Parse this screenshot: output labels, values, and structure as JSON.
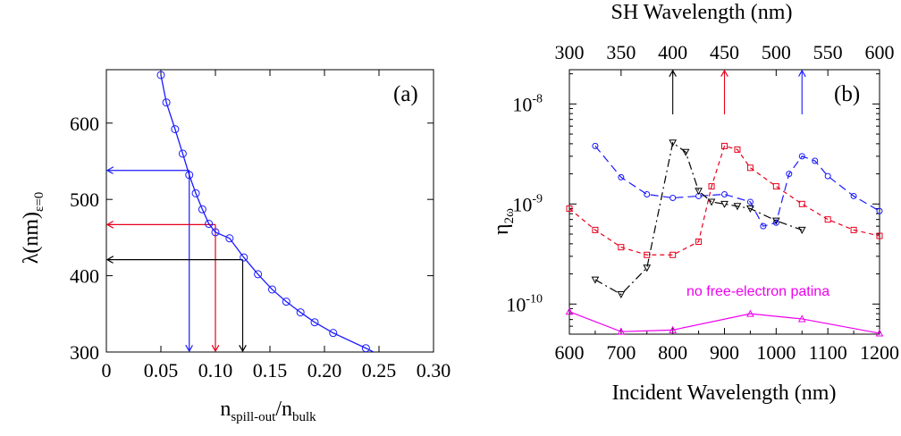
{
  "chart_data": [
    {
      "panel": "(a)",
      "type": "line",
      "xlabel_main": "n",
      "xlabel_sub1": "spill-out",
      "xlabel_mid": "/n",
      "xlabel_sub2": "bulk",
      "ylabel_main": "λ(nm)",
      "ylabel_sub": "ε=0",
      "xlim": [
        0,
        0.3
      ],
      "ylim": [
        300,
        670
      ],
      "xticks": [
        0,
        0.05,
        0.1,
        0.15,
        0.2,
        0.25,
        0.3
      ],
      "xtick_labels": [
        "0",
        "0.05",
        "0.10",
        "0.15",
        "0.20",
        "0.25",
        "0.30"
      ],
      "yticks": [
        300,
        400,
        500,
        600
      ],
      "ytick_labels": [
        "300",
        "400",
        "500",
        "600"
      ],
      "grid": false,
      "series": [
        {
          "color": "#1a1aff",
          "marker": "circle",
          "x": [
            0.05,
            0.055,
            0.063,
            0.07,
            0.076,
            0.082,
            0.088,
            0.094,
            0.1,
            0.113,
            0.126,
            0.139,
            0.152,
            0.165,
            0.178,
            0.191,
            0.208,
            0.238,
            0.245
          ],
          "y": [
            663,
            627,
            592,
            560,
            532,
            508,
            487,
            468,
            457,
            449,
            424,
            402,
            382,
            366,
            352,
            339,
            325,
            305,
            300
          ]
        }
      ],
      "arrows": [
        {
          "color": "#1a1aff",
          "x": 0.076,
          "y": 538
        },
        {
          "color": "#e8001c",
          "x": 0.1,
          "y": 467
        },
        {
          "color": "#000000",
          "x": 0.125,
          "y": 421
        }
      ]
    },
    {
      "panel": "(b)",
      "type": "line",
      "xlabel": "Incident Wavelength (nm)",
      "x2label": "SH Wavelength (nm)",
      "ylabel_main": "η",
      "ylabel_sub": "2ω",
      "yscale": "log",
      "xlim": [
        600,
        1200
      ],
      "ylim": [
        5e-11,
        2.2e-08
      ],
      "xticks": [
        600,
        700,
        800,
        900,
        1000,
        1100,
        1200
      ],
      "xtick_labels": [
        "600",
        "700",
        "800",
        "900",
        "1000",
        "1100",
        "1200"
      ],
      "x2ticks": [
        300,
        350,
        400,
        450,
        500,
        550,
        600
      ],
      "x2tick_labels": [
        "300",
        "350",
        "400",
        "450",
        "500",
        "550",
        "600"
      ],
      "ytick_mantissa": "10",
      "ytick_exponents": [
        "-8",
        "-9",
        "-10"
      ],
      "annotation": "no free-electron patina",
      "grid": false,
      "series": [
        {
          "color": "#1a1aff",
          "dash": "long-dash",
          "marker": "circle",
          "x": [
            650,
            700,
            750,
            800,
            850,
            900,
            950,
            975,
            1000,
            1025,
            1050,
            1075,
            1100,
            1150,
            1200
          ],
          "y": [
            3.8e-09,
            1.85e-09,
            1.25e-09,
            1.15e-09,
            1.2e-09,
            1.25e-09,
            1.05e-09,
            6e-10,
            6.5e-10,
            2e-09,
            3e-09,
            2.7e-09,
            1.9e-09,
            1.2e-09,
            8.5e-10
          ]
        },
        {
          "color": "#e8001c",
          "dash": "short-dash",
          "marker": "square",
          "x": [
            600,
            650,
            700,
            750,
            800,
            850,
            875,
            900,
            925,
            950,
            1000,
            1050,
            1100,
            1150,
            1200
          ],
          "y": [
            9e-10,
            5.5e-10,
            3.7e-10,
            3.1e-10,
            3.1e-10,
            4.2e-10,
            1.5e-09,
            3.8e-09,
            3.5e-09,
            2.3e-09,
            1.5e-09,
            1e-09,
            7e-10,
            5.5e-10,
            4.8e-10
          ]
        },
        {
          "color": "#000000",
          "dash": "dash-dot",
          "marker": "triangle-down",
          "x": [
            650,
            700,
            750,
            800,
            825,
            850,
            875,
            900,
            925,
            950,
            1000,
            1050
          ],
          "y": [
            1.75e-10,
            1.25e-10,
            2.3e-10,
            4.1e-09,
            3.3e-09,
            1.35e-09,
            1.05e-09,
            1e-09,
            9.5e-10,
            9e-10,
            6.8e-10,
            5.5e-10
          ]
        },
        {
          "color": "#ee00ee",
          "dash": "solid",
          "marker": "triangle-up",
          "x": [
            600,
            700,
            800,
            950,
            1050,
            1200
          ],
          "y": [
            8.4e-11,
            5.3e-11,
            5.5e-11,
            8e-11,
            7.1e-11,
            5.1e-11
          ]
        }
      ],
      "markers_top_arrows": [
        {
          "color": "#000000",
          "x": 800
        },
        {
          "color": "#e8001c",
          "x": 900
        },
        {
          "color": "#1a1aff",
          "x": 1050
        }
      ]
    }
  ]
}
